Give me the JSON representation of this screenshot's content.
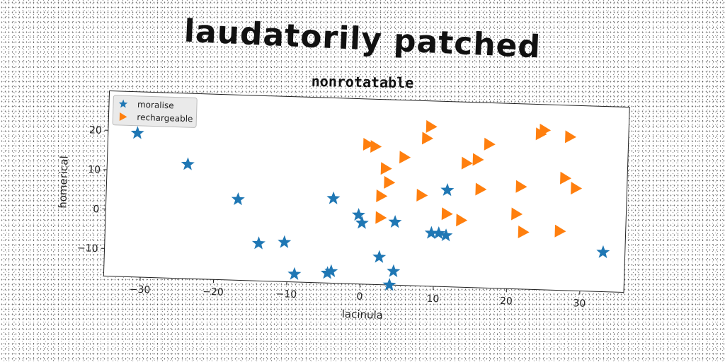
{
  "title": "laudatorily patched",
  "chart_data": {
    "type": "scatter",
    "title": "nonrotatable",
    "xlabel": "lacinula",
    "ylabel": "homerical",
    "xlim": [
      -35,
      36
    ],
    "ylim": [
      -17,
      30
    ],
    "xticks": [
      -30,
      -20,
      -10,
      0,
      10,
      20,
      30
    ],
    "yticks": [
      -10,
      0,
      10,
      20
    ],
    "grid": false,
    "legend": "top-left",
    "series": [
      {
        "name": "moralise",
        "marker": "star",
        "color": "#1f77b4",
        "points": [
          [
            -31,
            19.5
          ],
          [
            -24,
            12
          ],
          [
            -17,
            3.5
          ],
          [
            -14,
            -7.5
          ],
          [
            -10.5,
            -7
          ],
          [
            -9,
            -15
          ],
          [
            -4.5,
            -14.5
          ],
          [
            -4,
            -14
          ],
          [
            -4,
            4.5
          ],
          [
            -0.5,
            0.5
          ],
          [
            0,
            -1.5
          ],
          [
            2.5,
            -10
          ],
          [
            4.5,
            -1
          ],
          [
            4.5,
            -13.5
          ],
          [
            4,
            -17
          ],
          [
            9.5,
            -3.5
          ],
          [
            10.5,
            -3.5
          ],
          [
            11.5,
            -4
          ],
          [
            11.5,
            7.5
          ],
          [
            33,
            -7
          ]
        ]
      },
      {
        "name": "rechargeable",
        "marker": "triangle-right",
        "color": "#ff7f0e",
        "points": [
          [
            0.5,
            18.5
          ],
          [
            1.5,
            18
          ],
          [
            2.5,
            0
          ],
          [
            2.5,
            5.5
          ],
          [
            3,
            12.5
          ],
          [
            3.5,
            9
          ],
          [
            5.5,
            15.5
          ],
          [
            8,
            6
          ],
          [
            8.5,
            20.5
          ],
          [
            9,
            23.5
          ],
          [
            11.5,
            1.5
          ],
          [
            13.5,
            0
          ],
          [
            14,
            14.5
          ],
          [
            15.5,
            15.5
          ],
          [
            16,
            8
          ],
          [
            17,
            19.5
          ],
          [
            21,
            2
          ],
          [
            21.5,
            9
          ],
          [
            22,
            -2.5
          ],
          [
            24,
            22.5
          ],
          [
            24.5,
            23.5
          ],
          [
            27,
            -2
          ],
          [
            27.5,
            11.5
          ],
          [
            28,
            22
          ],
          [
            29,
            9
          ]
        ]
      }
    ]
  }
}
